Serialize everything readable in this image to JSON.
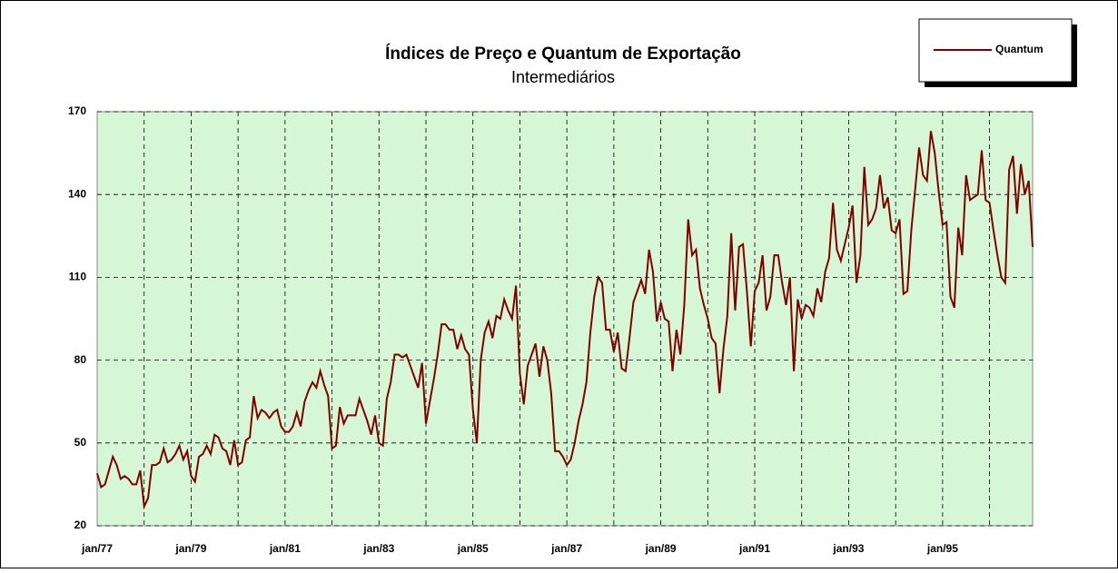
{
  "chart_data": {
    "type": "line",
    "title": "Índices de Preço e Quantum de Exportação",
    "subtitle": "Intermediários",
    "categories": [
      "jan/77",
      null,
      null,
      null,
      null,
      null,
      null,
      null,
      null,
      null,
      null,
      null,
      null,
      null,
      null,
      null,
      null,
      null,
      null,
      null,
      null,
      null,
      null,
      null,
      "jan/79",
      null,
      null,
      null,
      null,
      null,
      null,
      null,
      null,
      null,
      null,
      null,
      null,
      null,
      null,
      null,
      null,
      null,
      null,
      null,
      null,
      null,
      null,
      null,
      "jan/81",
      null,
      null,
      null,
      null,
      null,
      null,
      null,
      null,
      null,
      null,
      null,
      null,
      null,
      null,
      null,
      null,
      null,
      null,
      null,
      null,
      null,
      null,
      null,
      "jan/83",
      null,
      null,
      null,
      null,
      null,
      null,
      null,
      null,
      null,
      null,
      null,
      null,
      null,
      null,
      null,
      null,
      null,
      null,
      null,
      null,
      null,
      null,
      null,
      "jan/85",
      null,
      null,
      null,
      null,
      null,
      null,
      null,
      null,
      null,
      null,
      null,
      null,
      null,
      null,
      null,
      null,
      null,
      null,
      null,
      null,
      null,
      null,
      null,
      "jan/87",
      null,
      null,
      null,
      null,
      null,
      null,
      null,
      null,
      null,
      null,
      null,
      null,
      null,
      null,
      null,
      null,
      null,
      null,
      null,
      null,
      null,
      null,
      null,
      "jan/89",
      null,
      null,
      null,
      null,
      null,
      null,
      null,
      null,
      null,
      null,
      null,
      null,
      null,
      null,
      null,
      null,
      null,
      null,
      null,
      null,
      null,
      null,
      null,
      "jan/91",
      null,
      null,
      null,
      null,
      null,
      null,
      null,
      null,
      null,
      null,
      null,
      null,
      null,
      null,
      null,
      null,
      null,
      null,
      null,
      null,
      null,
      null,
      null,
      "jan/93",
      null,
      null,
      null,
      null,
      null,
      null,
      null,
      null,
      null,
      null,
      null,
      null,
      null,
      null,
      null,
      null,
      null,
      null,
      null,
      null,
      null,
      null,
      null,
      "jan/95",
      null,
      null,
      null,
      null,
      null,
      null,
      null,
      null,
      null,
      null,
      null,
      null,
      null,
      null,
      null,
      null,
      null,
      null,
      null,
      null,
      null,
      null,
      null
    ],
    "series": [
      {
        "name": "Quantum",
        "color": "#800000",
        "values": [
          39,
          34,
          35,
          40,
          45,
          42,
          37,
          38,
          37,
          35,
          35,
          40,
          27,
          30,
          42,
          42,
          43,
          48,
          43,
          44,
          46,
          49,
          44,
          47,
          38,
          36,
          45,
          46,
          49,
          46,
          53,
          52,
          48,
          47,
          42,
          51,
          42,
          43,
          51,
          52,
          67,
          59,
          62,
          61,
          59,
          61,
          62,
          56,
          54,
          54,
          56,
          61,
          56,
          65,
          69,
          72,
          70,
          76,
          71,
          67,
          48,
          49,
          63,
          57,
          60,
          60,
          60,
          66,
          62,
          58,
          53,
          60,
          50,
          49,
          66,
          72,
          82,
          82,
          81,
          82,
          78,
          74,
          70,
          79,
          57,
          65,
          73,
          82,
          93,
          93,
          91,
          91,
          84,
          89,
          84,
          82,
          62,
          50,
          80,
          90,
          94,
          88,
          96,
          95,
          102,
          98,
          95,
          107,
          75,
          64,
          78,
          82,
          86,
          74,
          85,
          80,
          68,
          47,
          47,
          45,
          42,
          44,
          50,
          58,
          64,
          72,
          90,
          103,
          110,
          108,
          91,
          91,
          83,
          90,
          77,
          76,
          88,
          101,
          105,
          109,
          104,
          120,
          112,
          94,
          101,
          95,
          94,
          76,
          91,
          82,
          100,
          131,
          118,
          120,
          106,
          100,
          95,
          88,
          86,
          68,
          84,
          96,
          126,
          98,
          121,
          122,
          105,
          85,
          105,
          108,
          118,
          98,
          103,
          118,
          118,
          108,
          100,
          110,
          76,
          102,
          95,
          100,
          99,
          96,
          106,
          101,
          112,
          117,
          137,
          120,
          116,
          122,
          128,
          136,
          108,
          118,
          150,
          129,
          131,
          135,
          147,
          135,
          139,
          127,
          126,
          131,
          104,
          105,
          127,
          142,
          157,
          147,
          145,
          163,
          155,
          141,
          129,
          130,
          103,
          99,
          128,
          118,
          147,
          138,
          139,
          140,
          156,
          138,
          137,
          127,
          118,
          110,
          108,
          149,
          154,
          133,
          151,
          140,
          145,
          121
        ]
      }
    ],
    "ylim": [
      20,
      170
    ],
    "yticks": [
      20,
      50,
      80,
      110,
      140,
      170
    ],
    "grid": true,
    "legend": "top-right"
  }
}
